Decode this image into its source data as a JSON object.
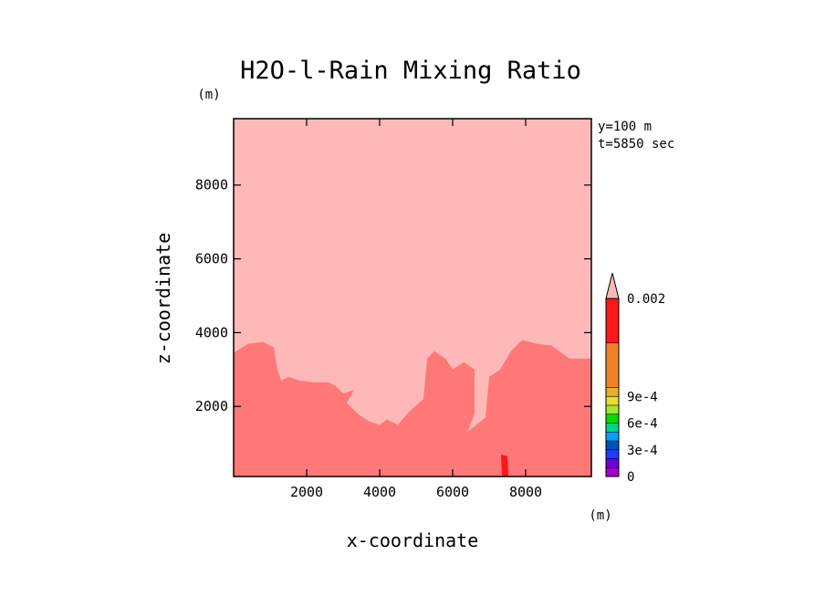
{
  "chart_data": {
    "type": "heatmap",
    "title": "H2O-l-Rain Mixing Ratio",
    "xlabel": "x-coordinate",
    "ylabel": "z-coordinate",
    "x_unit": "(m)",
    "y_unit": "(m)",
    "annotations": [
      "y=100 m",
      "t=5850 sec"
    ],
    "xlim": [
      0,
      9800
    ],
    "ylim": [
      100,
      9800
    ],
    "xticks": [
      2000,
      4000,
      6000,
      8000
    ],
    "yticks": [
      2000,
      4000,
      6000,
      8000
    ],
    "background_fill": "#ffb8b8",
    "lower_region": {
      "fill": "#ff7878",
      "boundary": [
        [
          0,
          3450
        ],
        [
          400,
          3700
        ],
        [
          800,
          3750
        ],
        [
          1100,
          3600
        ],
        [
          1200,
          3000
        ],
        [
          1300,
          2700
        ],
        [
          1500,
          2800
        ],
        [
          1800,
          2700
        ],
        [
          2200,
          2650
        ],
        [
          2600,
          2650
        ],
        [
          2800,
          2550
        ],
        [
          3000,
          2350
        ],
        [
          3300,
          2450
        ],
        [
          3100,
          2100
        ],
        [
          3400,
          1800
        ],
        [
          3700,
          1600
        ],
        [
          4000,
          1500
        ],
        [
          4200,
          1650
        ],
        [
          4500,
          1500
        ],
        [
          4800,
          1850
        ],
        [
          5200,
          2200
        ],
        [
          5300,
          3300
        ],
        [
          5500,
          3500
        ],
        [
          5800,
          3300
        ],
        [
          6000,
          3000
        ],
        [
          6300,
          3200
        ],
        [
          6600,
          3000
        ],
        [
          6600,
          1800
        ],
        [
          6400,
          1300
        ],
        [
          6900,
          1700
        ],
        [
          7000,
          2800
        ],
        [
          7300,
          3000
        ],
        [
          7600,
          3500
        ],
        [
          7900,
          3800
        ],
        [
          8300,
          3700
        ],
        [
          8700,
          3650
        ],
        [
          9200,
          3300
        ],
        [
          9800,
          3300
        ]
      ]
    },
    "hot_spot": {
      "fill": "#ff1818",
      "x": 7400,
      "z": 350
    },
    "colorbar": {
      "labels": [
        "0.002",
        "9e-4",
        "6e-4",
        "3e-4",
        "0"
      ],
      "levels": [
        0,
        0.0001,
        0.0002,
        0.0003,
        0.0004,
        0.0005,
        0.0006,
        0.0007,
        0.0008,
        0.0009,
        0.001,
        0.0015,
        0.002
      ],
      "colors": [
        "#a000c8",
        "#6e00dc",
        "#1e3cff",
        "#0050b4",
        "#00a0ff",
        "#00d28c",
        "#00dc00",
        "#a0e632",
        "#e6dc32",
        "#e6af2d",
        "#f08228",
        "#ff1818",
        "#ff7878"
      ],
      "extend_color": "#ffb8b8"
    }
  }
}
